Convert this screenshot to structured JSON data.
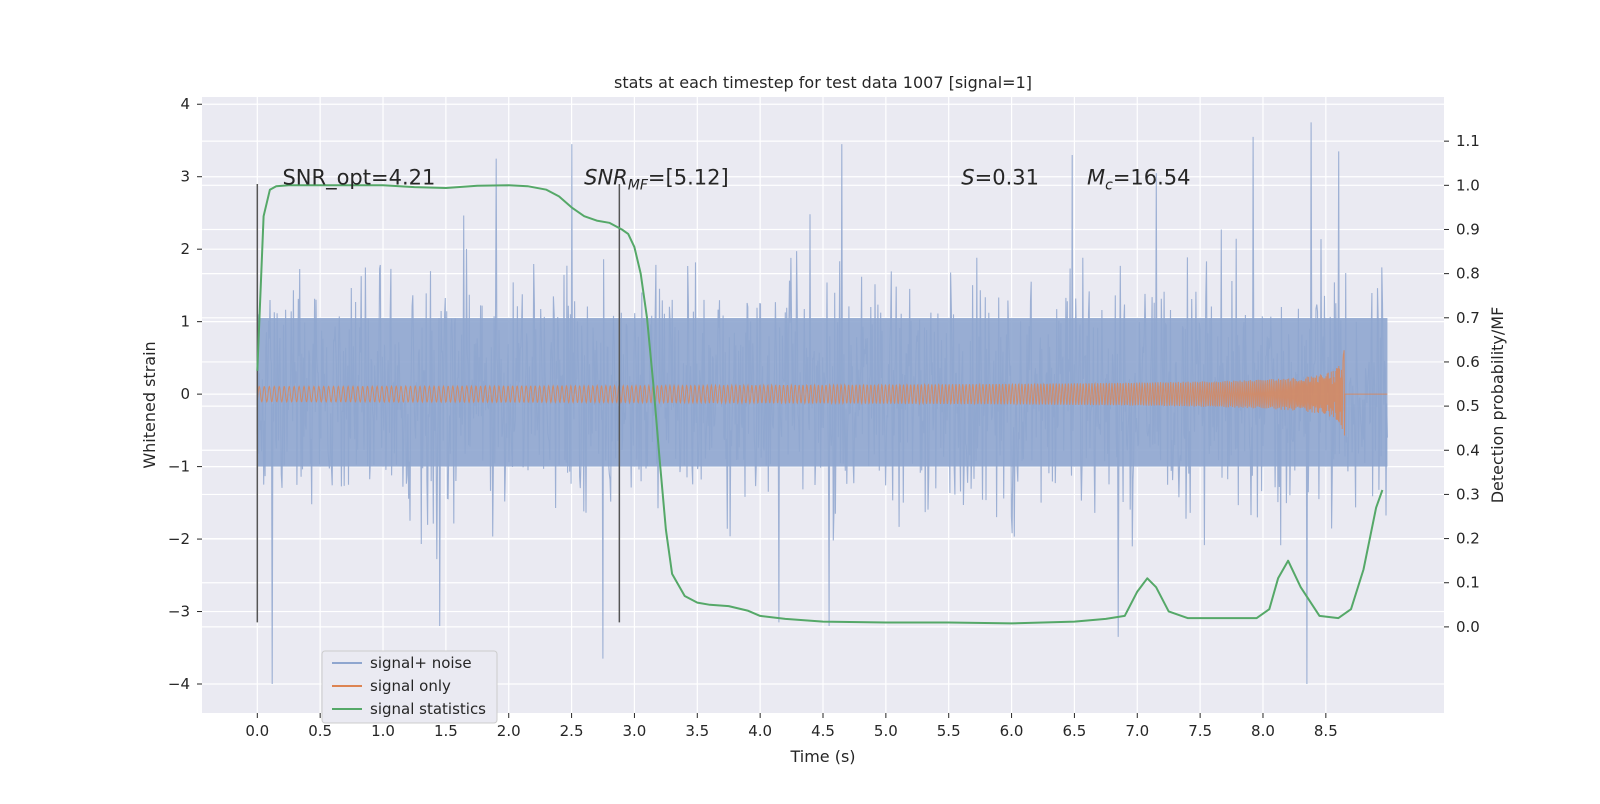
{
  "chart_data": {
    "type": "line",
    "title": "stats at each timestep for test data 1007 [signal=1]",
    "xlabel": "Time (s)",
    "ylabel_left": "Whitened strain",
    "ylabel_right": "Detection probability/MF",
    "xlim": [
      -0.44,
      9.44
    ],
    "ylim_left": [
      -4.4,
      4.1
    ],
    "ylim_right": [
      -0.195,
      1.2
    ],
    "x_ticks": [
      "0.0",
      "0.5",
      "1.0",
      "1.5",
      "2.0",
      "2.5",
      "3.0",
      "3.5",
      "4.0",
      "4.5",
      "5.0",
      "5.5",
      "6.0",
      "6.5",
      "7.0",
      "7.5",
      "8.0",
      "8.5"
    ],
    "y_left_ticks": [
      "−4",
      "−3",
      "−2",
      "−1",
      "0",
      "1",
      "2",
      "3",
      "4"
    ],
    "y_right_ticks": [
      "0.0",
      "0.1",
      "0.2",
      "0.3",
      "0.4",
      "0.5",
      "0.6",
      "0.7",
      "0.8",
      "0.9",
      "1.0",
      "1.1"
    ],
    "grid": true,
    "legend_position": "lower-left",
    "annotations": [
      {
        "name": "snr-opt",
        "text": "SNR_opt=4.21",
        "x": 0.2,
        "y": 3.0
      },
      {
        "name": "snr-mf",
        "text": "SNR_MF=[5.12]",
        "x": 2.6,
        "y": 3.0
      },
      {
        "name": "s-value",
        "text": "S=0.31",
        "x": 5.6,
        "y": 3.0
      },
      {
        "name": "chirp-mass",
        "text": "M_c=16.54",
        "x": 6.6,
        "y": 3.0
      }
    ],
    "vlines": [
      0.0,
      2.88
    ],
    "series": [
      {
        "name": "signal+ noise",
        "color": "#8fa6cf",
        "x_range": [
          0.0,
          8.99
        ],
        "envelope_core": [
          -1.0,
          1.05
        ],
        "spikes": [
          [
            0.12,
            -4.0
          ],
          [
            1.9,
            3.25
          ],
          [
            2.5,
            3.45
          ],
          [
            2.75,
            -3.65
          ],
          [
            4.15,
            -3.15
          ],
          [
            4.65,
            3.45
          ],
          [
            6.48,
            3.3
          ],
          [
            6.85,
            -3.35
          ],
          [
            7.15,
            3.05
          ],
          [
            7.92,
            3.55
          ],
          [
            8.38,
            3.75
          ],
          [
            8.35,
            -4.0
          ],
          [
            8.6,
            3.35
          ],
          [
            1.45,
            -3.2
          ],
          [
            4.55,
            -3.2
          ]
        ]
      },
      {
        "name": "signal only",
        "color": "#dd8452",
        "x_range": [
          0.0,
          8.99
        ],
        "merger_time": 8.65,
        "peak_amplitude": 0.72
      },
      {
        "name": "signal statistics",
        "color": "#55a868",
        "axis": "right",
        "x": [
          0.0,
          0.05,
          0.1,
          0.15,
          0.25,
          0.5,
          0.75,
          1.0,
          1.25,
          1.5,
          1.75,
          2.0,
          2.15,
          2.3,
          2.4,
          2.5,
          2.6,
          2.7,
          2.8,
          2.9,
          2.95,
          3.0,
          3.05,
          3.1,
          3.15,
          3.2,
          3.25,
          3.3,
          3.4,
          3.5,
          3.6,
          3.75,
          3.9,
          4.0,
          4.2,
          4.5,
          5.0,
          5.5,
          6.0,
          6.5,
          6.75,
          6.9,
          7.0,
          7.08,
          7.15,
          7.25,
          7.4,
          7.6,
          7.8,
          7.95,
          8.05,
          8.12,
          8.2,
          8.3,
          8.45,
          8.6,
          8.7,
          8.8,
          8.9,
          8.95
        ],
        "y": [
          0.58,
          0.93,
          0.99,
          0.998,
          1.0,
          1.0,
          1.0,
          1.0,
          0.996,
          0.994,
          0.999,
          1.0,
          0.998,
          0.99,
          0.975,
          0.95,
          0.93,
          0.92,
          0.915,
          0.9,
          0.89,
          0.86,
          0.8,
          0.7,
          0.55,
          0.38,
          0.22,
          0.12,
          0.07,
          0.055,
          0.05,
          0.047,
          0.037,
          0.025,
          0.018,
          0.012,
          0.01,
          0.01,
          0.008,
          0.012,
          0.018,
          0.025,
          0.08,
          0.11,
          0.09,
          0.035,
          0.02,
          0.02,
          0.02,
          0.02,
          0.04,
          0.11,
          0.15,
          0.09,
          0.025,
          0.02,
          0.04,
          0.13,
          0.27,
          0.31
        ]
      }
    ]
  }
}
